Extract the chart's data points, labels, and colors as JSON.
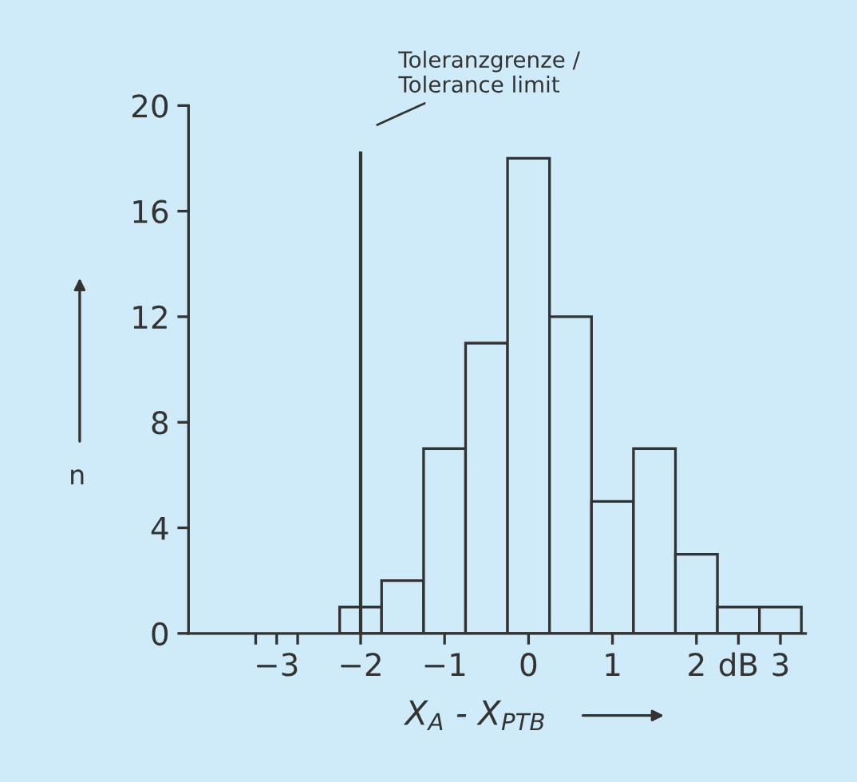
{
  "chart_data": {
    "type": "histogram",
    "bins": [
      -2.25,
      -1.75,
      -1.25,
      -0.75,
      -0.25,
      0.25,
      0.75,
      1.25,
      1.75,
      2.25,
      2.75,
      3.25
    ],
    "values": [
      1,
      2,
      7,
      11,
      18,
      12,
      5,
      7,
      3,
      1,
      1
    ],
    "color": "#cfeaf8",
    "xlabel": "X$_{A}$ - X$_{PTB}$",
    "ylabel": "n",
    "xlim": [
      -4.05,
      3.3
    ],
    "ylim": [
      0,
      20
    ],
    "xticks": [
      -3,
      {
        "value": -3.25,
        "label": null
      },
      {
        "value": -2.75,
        "label": null
      },
      -2,
      -1,
      0,
      1,
      2,
      {
        "value": 2.5,
        "label": "dB"
      },
      3
    ],
    "yticks": [
      0,
      4,
      8,
      12,
      16,
      20
    ],
    "ref_lines": [
      {
        "axis": "x",
        "value": -2,
        "label": "Toleranzgrenze /\nTolerance limit",
        "color": "#333333"
      }
    ],
    "grid": false
  }
}
